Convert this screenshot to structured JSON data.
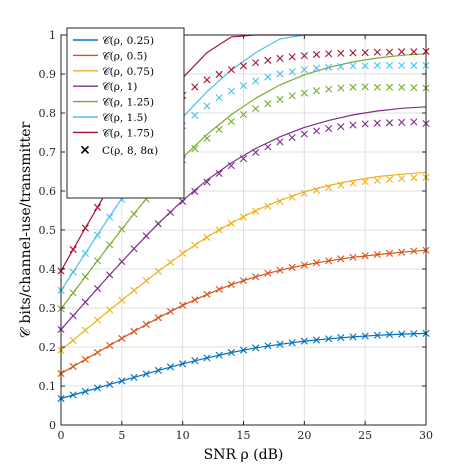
{
  "chart_data": {
    "type": "line",
    "xlabel": "SNR ρ (dB)",
    "ylabel": "𝒞 bits/channel-use/transmitter",
    "xlim": [
      0,
      30
    ],
    "ylim": [
      0,
      1
    ],
    "xticks": [
      "0",
      "5",
      "10",
      "15",
      "20",
      "25",
      "30"
    ],
    "yticks": [
      "0",
      "0.1",
      "0.2",
      "0.3",
      "0.4",
      "0.5",
      "0.6",
      "0.7",
      "0.8",
      "0.9",
      "1"
    ],
    "grid": true,
    "legend_position": "top-left",
    "series": [
      {
        "name": "𝒞(ρ, 0.25)",
        "color": "#0072BD",
        "style": "line",
        "x": [
          0,
          2,
          4,
          6,
          8,
          10,
          12,
          14,
          16,
          18,
          20,
          22,
          24,
          26,
          28,
          30
        ],
        "y": [
          0.068,
          0.086,
          0.104,
          0.122,
          0.14,
          0.157,
          0.172,
          0.186,
          0.198,
          0.207,
          0.215,
          0.221,
          0.226,
          0.23,
          0.233,
          0.235
        ]
      },
      {
        "name": "𝒞(ρ, 0.5)",
        "color": "#D95319",
        "style": "line",
        "x": [
          0,
          2,
          4,
          6,
          8,
          10,
          12,
          14,
          16,
          18,
          20,
          22,
          24,
          26,
          28,
          30
        ],
        "y": [
          0.132,
          0.168,
          0.204,
          0.24,
          0.275,
          0.307,
          0.335,
          0.36,
          0.38,
          0.397,
          0.41,
          0.421,
          0.43,
          0.437,
          0.443,
          0.448
        ]
      },
      {
        "name": "𝒞(ρ, 0.75)",
        "color": "#EDB120",
        "style": "line",
        "x": [
          0,
          2,
          4,
          6,
          8,
          10,
          12,
          14,
          16,
          18,
          20,
          22,
          24,
          26,
          28,
          30
        ],
        "y": [
          0.192,
          0.243,
          0.295,
          0.345,
          0.394,
          0.44,
          0.482,
          0.518,
          0.55,
          0.576,
          0.598,
          0.614,
          0.627,
          0.637,
          0.643,
          0.648
        ]
      },
      {
        "name": "𝒞(ρ, 1)",
        "color": "#7E2F8E",
        "style": "line",
        "x": [
          0,
          2,
          4,
          6,
          8,
          10,
          12,
          14,
          16,
          18,
          20,
          22,
          24,
          26,
          28,
          30
        ],
        "y": [
          0.245,
          0.315,
          0.385,
          0.452,
          0.517,
          0.576,
          0.628,
          0.672,
          0.709,
          0.739,
          0.763,
          0.781,
          0.795,
          0.805,
          0.812,
          0.816
        ]
      },
      {
        "name": "𝒞(ρ, 1.25)",
        "color": "#77AC30",
        "style": "line",
        "x": [
          0,
          2,
          4,
          6,
          8,
          10,
          12,
          14,
          16,
          18,
          20,
          22,
          24,
          26,
          28,
          30
        ],
        "y": [
          0.298,
          0.38,
          0.462,
          0.542,
          0.617,
          0.686,
          0.745,
          0.796,
          0.838,
          0.872,
          0.898,
          0.917,
          0.931,
          0.941,
          0.948,
          0.952
        ]
      },
      {
        "name": "𝒞(ρ, 1.5)",
        "color": "#4DBEEE",
        "style": "line",
        "x": [
          0,
          2,
          4,
          6,
          8,
          10,
          12,
          14,
          16,
          18,
          20,
          22,
          24,
          26,
          28,
          30
        ],
        "y": [
          0.345,
          0.44,
          0.535,
          0.627,
          0.712,
          0.789,
          0.855,
          0.91,
          0.955,
          0.99,
          1.0,
          1.0,
          1.0,
          1.0,
          1.0,
          1.0
        ]
      },
      {
        "name": "𝒞(ρ, 1.75)",
        "color": "#A2142F",
        "style": "line",
        "x": [
          0,
          2,
          4,
          6,
          8,
          10,
          12,
          14,
          16,
          18,
          20,
          22,
          24,
          26,
          28,
          30
        ],
        "y": [
          0.395,
          0.505,
          0.612,
          0.715,
          0.808,
          0.89,
          0.955,
          0.995,
          1.0,
          1.0,
          1.0,
          1.0,
          1.0,
          1.0,
          1.0,
          1.0
        ]
      },
      {
        "name": "C(ρ, 8, 8α)",
        "color": "#000000",
        "style": "marker",
        "legend": true,
        "markers": [
          {
            "color": "#0072BD",
            "x": [
              0,
              1,
              2,
              3,
              4,
              5,
              6,
              7,
              8,
              9,
              10,
              11,
              12,
              13,
              14,
              15,
              16,
              17,
              18,
              19,
              20,
              21,
              22,
              23,
              24,
              25,
              26,
              27,
              28,
              29,
              30
            ],
            "y": [
              0.068,
              0.077,
              0.086,
              0.095,
              0.104,
              0.113,
              0.122,
              0.131,
              0.14,
              0.149,
              0.157,
              0.165,
              0.172,
              0.179,
              0.186,
              0.192,
              0.198,
              0.203,
              0.207,
              0.211,
              0.215,
              0.218,
              0.221,
              0.224,
              0.226,
              0.228,
              0.23,
              0.232,
              0.233,
              0.234,
              0.235
            ]
          },
          {
            "color": "#D95319",
            "x": [
              0,
              1,
              2,
              3,
              4,
              5,
              6,
              7,
              8,
              9,
              10,
              11,
              12,
              13,
              14,
              15,
              16,
              17,
              18,
              19,
              20,
              21,
              22,
              23,
              24,
              25,
              26,
              27,
              28,
              29,
              30
            ],
            "y": [
              0.132,
              0.15,
              0.168,
              0.186,
              0.204,
              0.222,
              0.24,
              0.258,
              0.275,
              0.291,
              0.307,
              0.321,
              0.335,
              0.348,
              0.36,
              0.37,
              0.38,
              0.389,
              0.397,
              0.404,
              0.41,
              0.416,
              0.421,
              0.426,
              0.43,
              0.434,
              0.437,
              0.44,
              0.443,
              0.446,
              0.448
            ]
          },
          {
            "color": "#EDB120",
            "x": [
              0,
              1,
              2,
              3,
              4,
              5,
              6,
              7,
              8,
              9,
              10,
              11,
              12,
              13,
              14,
              15,
              16,
              17,
              18,
              19,
              20,
              21,
              22,
              23,
              24,
              25,
              26,
              27,
              28,
              29,
              30
            ],
            "y": [
              0.192,
              0.217,
              0.243,
              0.269,
              0.295,
              0.32,
              0.345,
              0.37,
              0.394,
              0.417,
              0.44,
              0.461,
              0.481,
              0.5,
              0.517,
              0.533,
              0.548,
              0.561,
              0.573,
              0.584,
              0.594,
              0.602,
              0.609,
              0.615,
              0.62,
              0.624,
              0.627,
              0.63,
              0.632,
              0.634,
              0.635
            ]
          },
          {
            "color": "#7E2F8E",
            "x": [
              0,
              1,
              2,
              3,
              4,
              5,
              6,
              7,
              8,
              9,
              10,
              11,
              12,
              13,
              14,
              15,
              16,
              17,
              18,
              19,
              20,
              21,
              22,
              23,
              24,
              25,
              26,
              27,
              28,
              29,
              30
            ],
            "y": [
              0.245,
              0.28,
              0.315,
              0.35,
              0.385,
              0.419,
              0.452,
              0.485,
              0.516,
              0.545,
              0.573,
              0.599,
              0.623,
              0.645,
              0.665,
              0.683,
              0.699,
              0.713,
              0.726,
              0.737,
              0.746,
              0.754,
              0.76,
              0.765,
              0.769,
              0.772,
              0.774,
              0.775,
              0.776,
              0.777,
              0.773
            ]
          },
          {
            "color": "#77AC30",
            "x": [
              0,
              1,
              2,
              3,
              4,
              5,
              6,
              7,
              8,
              9,
              10,
              11,
              12,
              13,
              14,
              15,
              16,
              17,
              18,
              19,
              20,
              21,
              22,
              23,
              24,
              25,
              26,
              27,
              28,
              29,
              30
            ],
            "y": [
              0.298,
              0.339,
              0.38,
              0.421,
              0.462,
              0.502,
              0.541,
              0.579,
              0.615,
              0.649,
              0.68,
              0.709,
              0.735,
              0.758,
              0.778,
              0.796,
              0.811,
              0.824,
              0.835,
              0.844,
              0.851,
              0.857,
              0.861,
              0.864,
              0.866,
              0.867,
              0.866,
              0.866,
              0.866,
              0.865,
              0.864
            ]
          },
          {
            "color": "#4DBEEE",
            "x": [
              0,
              1,
              2,
              3,
              4,
              5,
              6,
              7,
              8,
              9,
              10,
              11,
              12,
              13,
              14,
              15,
              16,
              17,
              18,
              19,
              20,
              21,
              22,
              23,
              24,
              25,
              26,
              27,
              28,
              29,
              30
            ],
            "y": [
              0.345,
              0.392,
              0.44,
              0.487,
              0.533,
              0.578,
              0.622,
              0.663,
              0.701,
              0.736,
              0.767,
              0.794,
              0.818,
              0.839,
              0.856,
              0.87,
              0.882,
              0.892,
              0.9,
              0.906,
              0.911,
              0.915,
              0.917,
              0.919,
              0.921,
              0.921,
              0.922,
              0.922,
              0.922,
              0.922,
              0.922
            ]
          },
          {
            "color": "#A2142F",
            "x": [
              0,
              1,
              2,
              3,
              4,
              5,
              6,
              7,
              8,
              9,
              10,
              11,
              12,
              13,
              14,
              15,
              16,
              17,
              18,
              19,
              20,
              21,
              22,
              23,
              24,
              25,
              26,
              27,
              28,
              29,
              30
            ],
            "y": [
              0.395,
              0.45,
              0.505,
              0.558,
              0.61,
              0.66,
              0.707,
              0.749,
              0.786,
              0.818,
              0.845,
              0.867,
              0.885,
              0.899,
              0.911,
              0.921,
              0.929,
              0.935,
              0.94,
              0.944,
              0.947,
              0.95,
              0.952,
              0.953,
              0.954,
              0.955,
              0.956,
              0.956,
              0.957,
              0.957,
              0.958
            ]
          }
        ]
      }
    ]
  }
}
